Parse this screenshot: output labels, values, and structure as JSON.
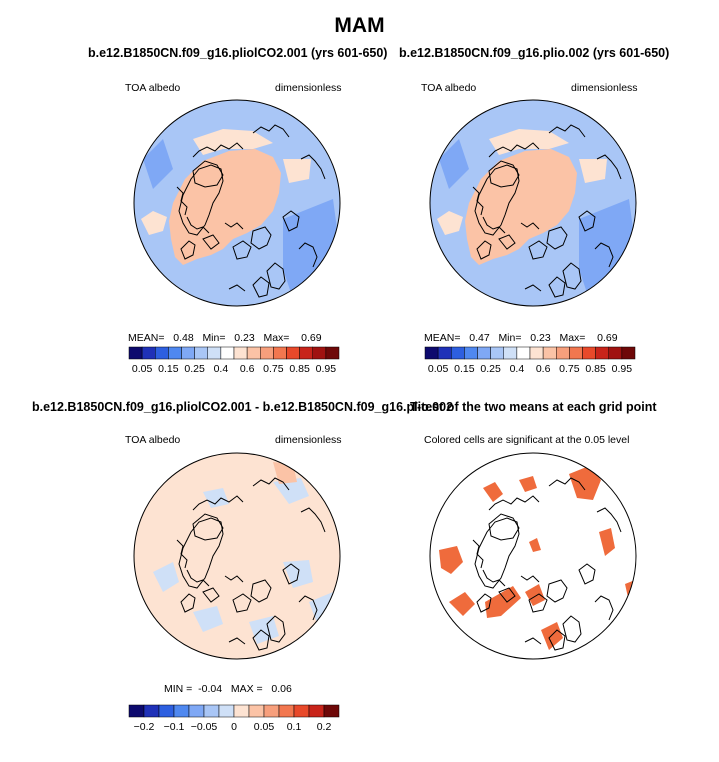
{
  "main_title": "MAM",
  "panels": [
    {
      "title": "b.e12.B1850CN.f09_g16.pliolCO2.001 (yrs 601-650)",
      "left_label": "TOA albedo",
      "right_label": "dimensionless",
      "stats": {
        "mean_label": "MEAN=",
        "mean": "0.48",
        "min_label": "Min=",
        "min": "0.23",
        "max_label": "Max=",
        "max": "0.69"
      }
    },
    {
      "title": "b.e12.B1850CN.f09_g16.plio.002 (yrs 601-650)",
      "left_label": "TOA albedo",
      "right_label": "dimensionless",
      "stats": {
        "mean_label": "MEAN=",
        "mean": "0.47",
        "min_label": "Min=",
        "min": "0.23",
        "max_label": "Max=",
        "max": "0.69"
      }
    },
    {
      "title": "b.e12.B1850CN.f09_g16.pliolCO2.001 - b.e12.B1850CN.f09_g16.plio.002",
      "left_label": "TOA albedo",
      "right_label": "dimensionless",
      "stats": {
        "min_label": "MIN =",
        "min": "-0.04",
        "max_label": "MAX =",
        "max": "0.06"
      }
    },
    {
      "title": "T-test of the two means at each grid point",
      "subtitle": "Colored cells are significant at the 0.05 level"
    }
  ],
  "chart_data": [
    {
      "type": "heatmap",
      "title": "b.e12.B1850CN.f09_g16.pliolCO2.001 (yrs 601-650)",
      "variable": "TOA albedo",
      "units": "dimensionless",
      "projection": "north polar stereographic",
      "mean": 0.48,
      "min": 0.23,
      "max": 0.69,
      "colorbar_ticks": [
        "0.05",
        "0.15",
        "0.25",
        "0.4",
        "0.6",
        "0.75",
        "0.85",
        "0.95"
      ],
      "colors": [
        "#0d0a6e",
        "#1f31b8",
        "#2d5fe0",
        "#4f88f0",
        "#7fa8f5",
        "#a9c6f6",
        "#cfe0f7",
        "#ffffff",
        "#fde3d2",
        "#fbc3a6",
        "#f79f7c",
        "#f2774f",
        "#e8492a",
        "#c8241a",
        "#a01210",
        "#6e0808"
      ]
    },
    {
      "type": "heatmap",
      "title": "b.e12.B1850CN.f09_g16.plio.002 (yrs 601-650)",
      "variable": "TOA albedo",
      "units": "dimensionless",
      "projection": "north polar stereographic",
      "mean": 0.47,
      "min": 0.23,
      "max": 0.69,
      "colorbar_ticks": [
        "0.05",
        "0.15",
        "0.25",
        "0.4",
        "0.6",
        "0.75",
        "0.85",
        "0.95"
      ],
      "colors": [
        "#0d0a6e",
        "#1f31b8",
        "#2d5fe0",
        "#4f88f0",
        "#7fa8f5",
        "#a9c6f6",
        "#cfe0f7",
        "#ffffff",
        "#fde3d2",
        "#fbc3a6",
        "#f79f7c",
        "#f2774f",
        "#e8492a",
        "#c8241a",
        "#a01210",
        "#6e0808"
      ]
    },
    {
      "type": "heatmap",
      "title": "b.e12.B1850CN.f09_g16.pliolCO2.001 - b.e12.B1850CN.f09_g16.plio.002",
      "variable": "TOA albedo",
      "units": "dimensionless",
      "projection": "north polar stereographic",
      "min": -0.04,
      "max": 0.06,
      "colorbar_ticks": [
        "-0.2",
        "-0.1",
        "-0.05",
        "0",
        "0.05",
        "0.1",
        "0.2"
      ],
      "colors": [
        "#0d0a6e",
        "#1f31b8",
        "#2d5fe0",
        "#4f88f0",
        "#7fa8f5",
        "#a9c6f6",
        "#cfe0f7",
        "#fde3d2",
        "#fbc3a6",
        "#f79f7c",
        "#f2774f",
        "#e8492a",
        "#c8241a",
        "#6e0808"
      ]
    },
    {
      "type": "heatmap",
      "title": "T-test of the two means at each grid point",
      "note": "Colored cells are significant at the 0.05 level",
      "projection": "north polar stereographic",
      "significant_color": "#ef6b3c"
    }
  ],
  "colors": {
    "ocean_blue": "#a9c6f6",
    "ocean_blue_dark": "#7fa8f5",
    "land_salmon": "#fbc3a6",
    "light_salmon": "#fde3d2",
    "diff_light_blue": "#cfe0f7",
    "sig_orange": "#ef6b3c"
  }
}
